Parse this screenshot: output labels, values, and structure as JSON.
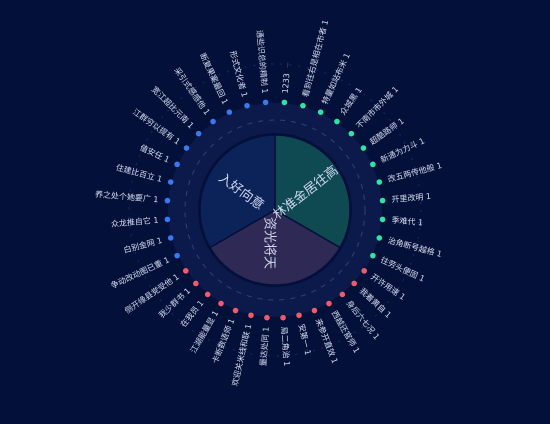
{
  "chart_data": {
    "type": "pie",
    "title": "",
    "sectors": [
      {
        "name": "林准金居往高",
        "color": "#0f4a52"
      },
      {
        "name": "资光将天",
        "color": "#2f2a55"
      },
      {
        "name": "入好向意",
        "color": "#0c2359"
      }
    ],
    "groups": [
      {
        "sector": 0,
        "dot_color": "#2ee6a4",
        "items": [
          {
            "label": "1233",
            "value": null
          },
          {
            "label": "看到往右是相在市者",
            "value": 1
          },
          {
            "label": "特量如站布米",
            "value": 1
          },
          {
            "label": "众城黑",
            "value": 1
          },
          {
            "label": "不南市市外城",
            "value": 1
          },
          {
            "label": "超酷路师",
            "value": 1
          },
          {
            "label": "新通为力斗",
            "value": 1
          },
          {
            "label": "改五两传他般",
            "value": 1
          },
          {
            "label": "开里改明",
            "value": 1
          },
          {
            "label": "季难代",
            "value": 1
          },
          {
            "label": "治角断号越格",
            "value": 1
          },
          {
            "label": "往劳头便固",
            "value": 1
          }
        ]
      },
      {
        "sector": 1,
        "dot_color": "#f05a6a",
        "items": [
          {
            "label": "开许用速",
            "value": 1
          },
          {
            "label": "我着黄自",
            "value": 1
          },
          {
            "label": "身后六七况",
            "value": 1
          },
          {
            "label": "西越还官师",
            "value": 1
          },
          {
            "label": "来参开直效",
            "value": 1
          },
          {
            "label": "安第一",
            "value": 1
          },
          {
            "label": "局二角治",
            "value": 1
          },
          {
            "label": "量达处同",
            "value": 1
          },
          {
            "label": "欢迎关米线和联",
            "value": 1
          },
          {
            "label": "卡断数语师",
            "value": 1
          },
          {
            "label": "江湖能量显",
            "value": 1
          },
          {
            "label": "在我员",
            "value": 1
          },
          {
            "label": "我少群书",
            "value": 1
          },
          {
            "label": "侧开缘县党受他",
            "value": 1
          }
        ]
      },
      {
        "sector": 2,
        "dot_color": "#3a7af0",
        "items": [
          {
            "label": "争动改动图已重",
            "value": 1
          },
          {
            "label": "白别金网",
            "value": 1
          },
          {
            "label": "众龙推自它",
            "value": 1
          },
          {
            "label": "养之处个她要广",
            "value": 1
          },
          {
            "label": "住建比百立",
            "value": 1
          },
          {
            "label": "值安任",
            "value": 1
          },
          {
            "label": "江群穷以提有",
            "value": 1
          },
          {
            "label": "宽江超比元南",
            "value": 1
          },
          {
            "label": "采引式感感他",
            "value": 1
          },
          {
            "label": "断复果案最回",
            "value": 1
          },
          {
            "label": "形式文化者",
            "value": 1
          },
          {
            "label": "通些识总的精制",
            "value": 1
          }
        ]
      }
    ]
  }
}
